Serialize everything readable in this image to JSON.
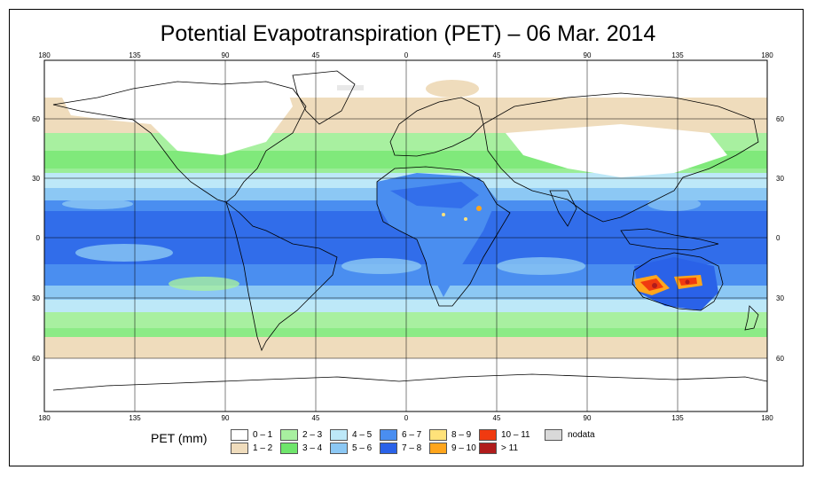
{
  "title": "Potential Evapotranspiration (PET) – 06 Mar. 2014",
  "axes": {
    "lon_ticks": [
      "180",
      "135",
      "90",
      "45",
      "0",
      "45",
      "90",
      "135",
      "180"
    ],
    "lat_ticks": [
      "60",
      "30",
      "0",
      "30",
      "60"
    ]
  },
  "legend": {
    "label": "PET (mm)",
    "nodata_label": "nodata",
    "nodata_color": "#d9d9d9",
    "classes": [
      {
        "range": "0 – 1",
        "color": "#ffffff"
      },
      {
        "range": "1 – 2",
        "color": "#efdcbc"
      },
      {
        "range": "2 – 3",
        "color": "#a8f0a0"
      },
      {
        "range": "3 – 4",
        "color": "#6fe56b"
      },
      {
        "range": "4 – 5",
        "color": "#bde8f8"
      },
      {
        "range": "5 – 6",
        "color": "#8cc8f4"
      },
      {
        "range": "6 – 7",
        "color": "#4a8ef0"
      },
      {
        "range": "7 – 8",
        "color": "#2a62e8"
      },
      {
        "range": "8 – 9",
        "color": "#ffe27a"
      },
      {
        "range": "9 – 10",
        "color": "#ffa51c"
      },
      {
        "range": "10 – 11",
        "color": "#f03a10"
      },
      {
        "range": "> 11",
        "color": "#b01c1c"
      }
    ]
  },
  "colors": {
    "land_outline": "#000000",
    "grid": "#000000"
  }
}
